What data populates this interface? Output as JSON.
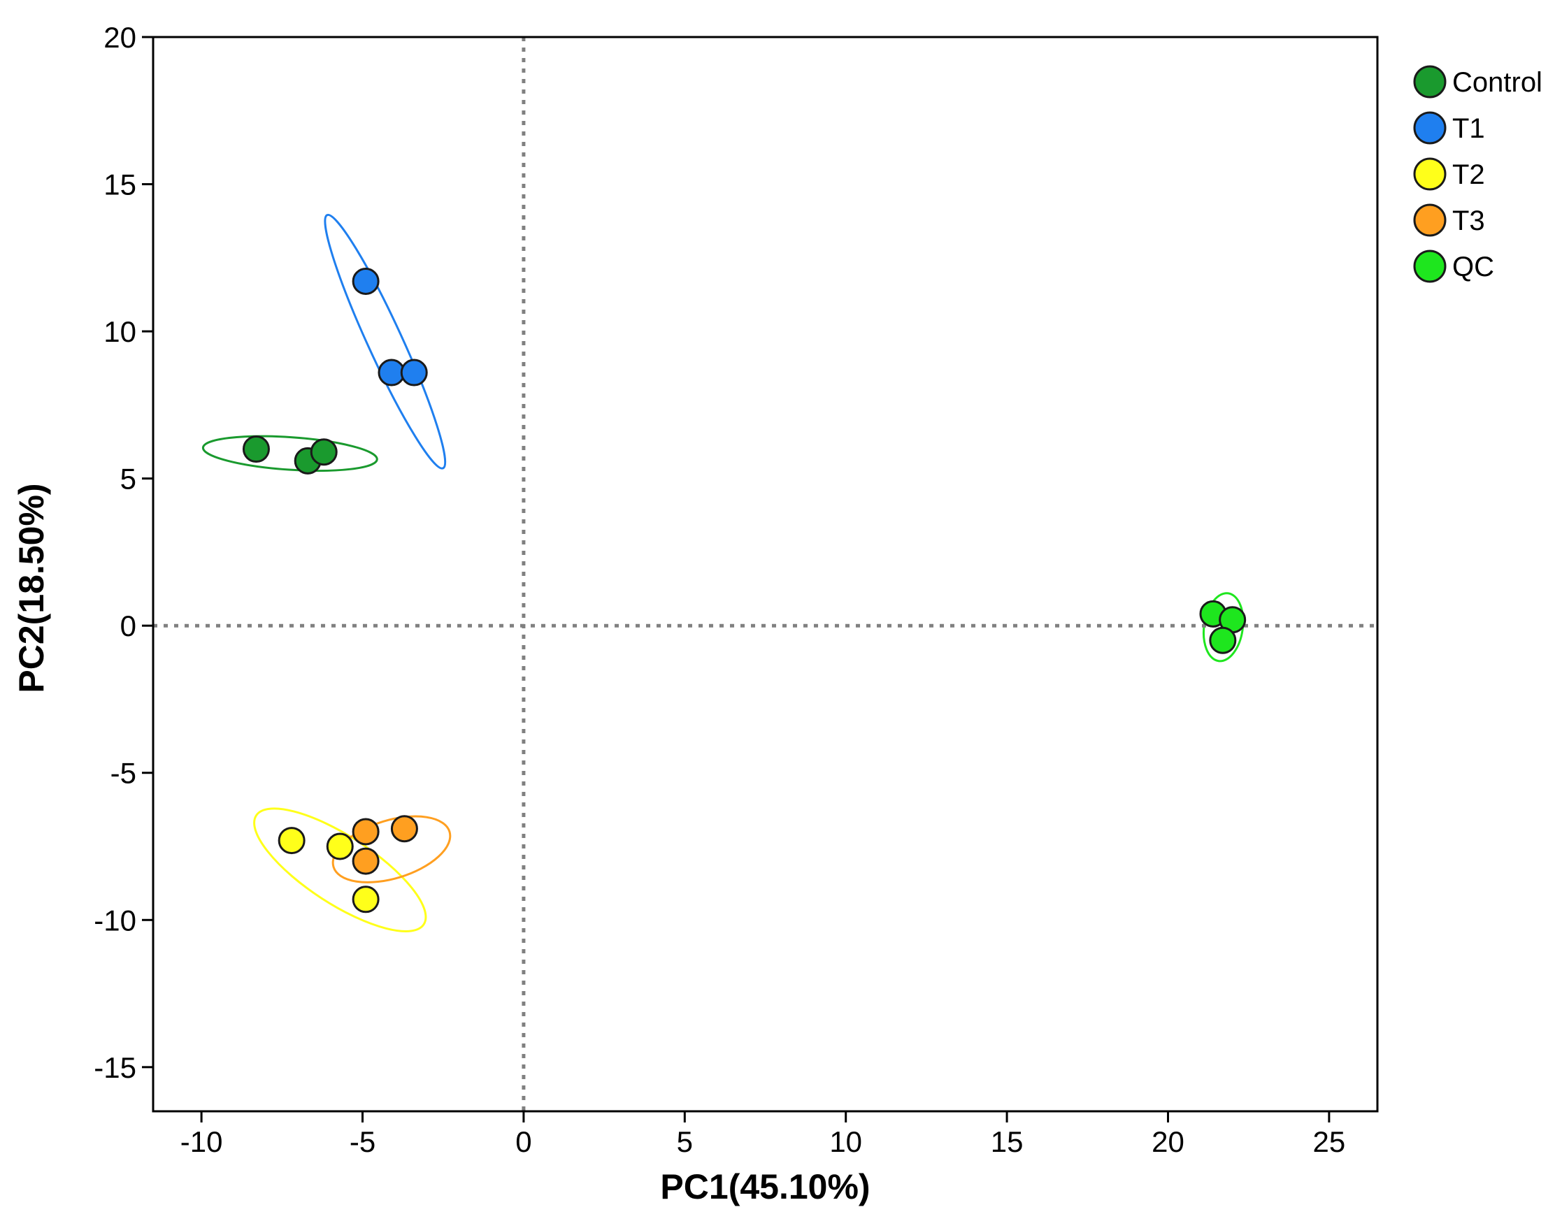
{
  "chart_data": {
    "type": "scatter",
    "title": "",
    "xlabel": "PC1(45.10%)",
    "ylabel": "PC2(18.50%)",
    "xlim": [
      -11.5,
      26.5
    ],
    "ylim": [
      -16.5,
      20
    ],
    "xticks": [
      -10,
      -5,
      0,
      5,
      10,
      15,
      20,
      25
    ],
    "yticks": [
      -15,
      -10,
      -5,
      0,
      5,
      10,
      15,
      20
    ],
    "reference_lines": {
      "x": 0,
      "y": 0,
      "style": "dotted"
    },
    "grid": false,
    "legend_position": "top-right-outside",
    "series": [
      {
        "name": "Control",
        "color": "#1a9a2e",
        "points": [
          [
            -8.3,
            6.0
          ],
          [
            -6.7,
            5.6
          ],
          [
            -6.2,
            5.9
          ]
        ],
        "ellipse": {
          "center": [
            -7.25,
            5.85
          ],
          "semi_major_data_x": 2.7,
          "semi_major_data_y": -0.2,
          "semi_minor_data_x": 0.04,
          "semi_minor_data_y": 0.55
        }
      },
      {
        "name": "T1",
        "color": "#1f7fef",
        "points": [
          [
            -4.9,
            11.7
          ],
          [
            -4.1,
            8.6
          ],
          [
            -3.4,
            8.6
          ]
        ],
        "ellipse": {
          "center": [
            -4.3,
            9.65
          ],
          "semi_major_data_x": 1.8,
          "semi_major_data_y": -4.3,
          "semi_minor_data_x": 0.5,
          "semi_minor_data_y": 0.2
        }
      },
      {
        "name": "T2",
        "color": "#ffff1a",
        "points": [
          [
            -7.2,
            -7.3
          ],
          [
            -5.7,
            -7.5
          ],
          [
            -4.9,
            -9.3
          ]
        ],
        "ellipse": {
          "center": [
            -5.7,
            -8.3
          ],
          "semi_major_data_x": 2.6,
          "semi_major_data_y": -1.85,
          "semi_minor_data_x": 0.65,
          "semi_minor_data_y": 0.9
        }
      },
      {
        "name": "T3",
        "color": "#ff9f20",
        "points": [
          [
            -4.9,
            -7.0
          ],
          [
            -3.7,
            -6.9
          ],
          [
            -4.9,
            -8.0
          ]
        ],
        "ellipse": {
          "center": [
            -4.1,
            -7.6
          ],
          "semi_major_data_x": 1.8,
          "semi_major_data_y": 0.6,
          "semi_minor_data_x": -0.25,
          "semi_minor_data_y": 0.95
        }
      },
      {
        "name": "QC",
        "color": "#1ee61e",
        "points": [
          [
            21.4,
            0.4
          ],
          [
            22.0,
            0.2
          ],
          [
            21.7,
            -0.5
          ]
        ],
        "ellipse": {
          "center": [
            21.72,
            -0.05
          ],
          "semi_major_data_x": 0.15,
          "semi_major_data_y": 1.15,
          "semi_minor_data_x": 0.6,
          "semi_minor_data_y": 0.0
        }
      }
    ]
  }
}
